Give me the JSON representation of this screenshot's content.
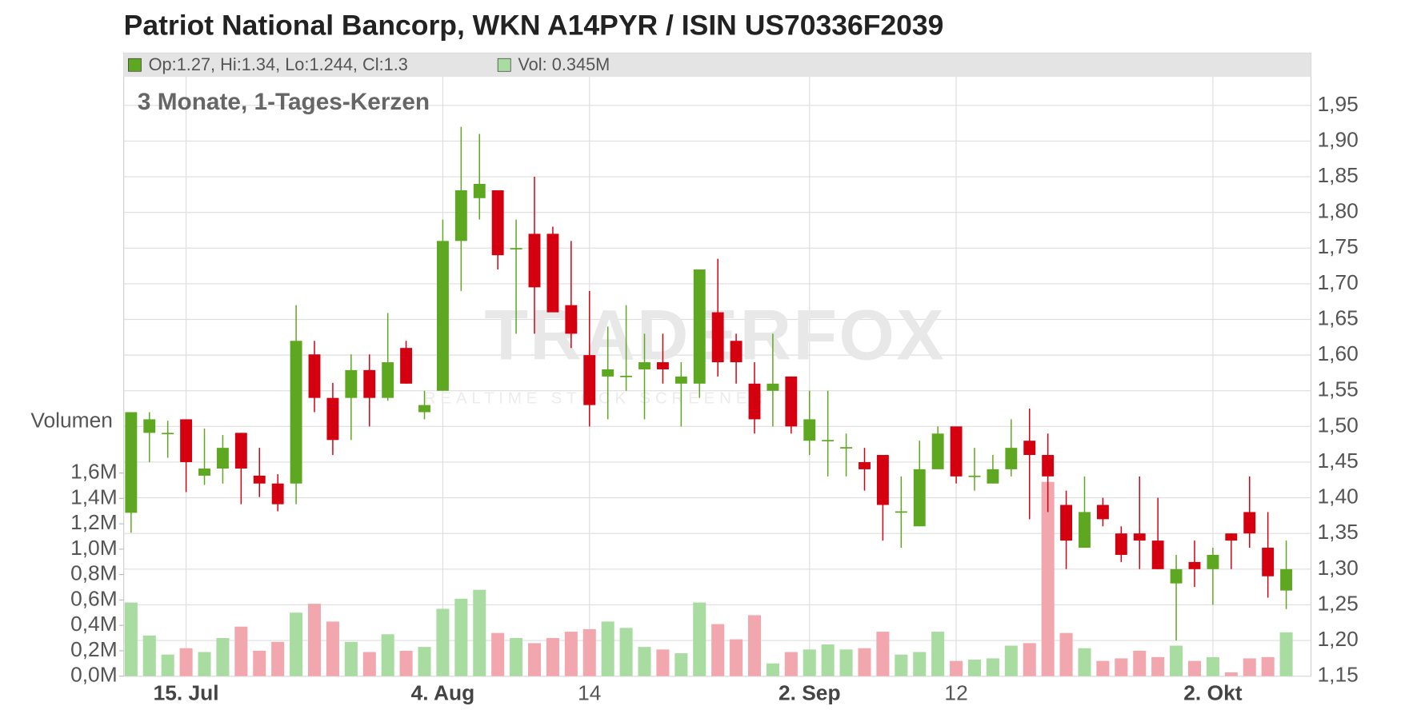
{
  "chart_data": {
    "type": "candlestick",
    "title": "Patriot National Bancorp, WKN A14PYR / ISIN US70336F2039",
    "subtitle": "3 Monate, 1-Tages-Kerzen",
    "legend": [
      "Op:1.27, Hi:1.34, Lo:1.244, Cl:1.3",
      "Vol: 0.345M"
    ],
    "watermark": "TRADERFOX",
    "watermark_subtitle": "REALTIME STOCK SCREENER",
    "y2_label": "Volumen",
    "up_color": "#5ea821",
    "down_color": "#d40010",
    "volume_up_color": "#a8dca0",
    "volume_down_color": "#f2a6ae",
    "grid": true,
    "categories": [
      null,
      null,
      null,
      "15. Jul",
      null,
      null,
      null,
      null,
      null,
      null,
      null,
      null,
      null,
      null,
      null,
      null,
      null,
      "4. Aug",
      null,
      null,
      null,
      null,
      null,
      null,
      null,
      "14",
      null,
      null,
      null,
      null,
      null,
      null,
      null,
      null,
      null,
      null,
      null,
      "2. Sep",
      null,
      null,
      null,
      null,
      null,
      null,
      null,
      "12",
      null,
      null,
      null,
      null,
      null,
      null,
      null,
      null,
      null,
      null,
      null,
      null,
      null,
      "2. Okt",
      null,
      null,
      null,
      null
    ],
    "open": [
      1.379,
      1.491,
      1.49,
      1.51,
      1.431,
      1.441,
      1.491,
      1.431,
      1.42,
      1.42,
      1.601,
      1.54,
      1.54,
      1.579,
      1.54,
      1.61,
      1.52,
      1.55,
      1.76,
      1.82,
      1.831,
      1.749,
      1.77,
      1.77,
      1.67,
      1.6,
      1.57,
      1.57,
      1.58,
      1.59,
      1.56,
      1.56,
      1.66,
      1.62,
      1.56,
      1.55,
      1.57,
      1.48,
      1.48,
      1.47,
      1.45,
      1.46,
      1.38,
      1.36,
      1.44,
      1.5,
      1.43,
      1.42,
      1.44,
      1.48,
      1.46,
      1.39,
      1.33,
      1.39,
      1.35,
      1.35,
      1.34,
      1.28,
      1.31,
      1.3,
      1.35,
      1.38,
      1.33,
      1.27
    ],
    "high": [
      1.52,
      1.52,
      1.508,
      1.51,
      1.497,
      1.488,
      1.491,
      1.47,
      1.433,
      1.67,
      1.62,
      1.561,
      1.601,
      1.601,
      1.659,
      1.62,
      1.55,
      1.79,
      1.92,
      1.91,
      1.831,
      1.79,
      1.85,
      1.78,
      1.76,
      1.69,
      1.64,
      1.67,
      1.63,
      1.63,
      1.59,
      1.72,
      1.735,
      1.63,
      1.59,
      1.63,
      1.57,
      1.55,
      1.55,
      1.49,
      1.47,
      1.46,
      1.43,
      1.48,
      1.5,
      1.5,
      1.47,
      1.46,
      1.51,
      1.525,
      1.49,
      1.41,
      1.43,
      1.4,
      1.36,
      1.43,
      1.4,
      1.32,
      1.34,
      1.33,
      1.35,
      1.43,
      1.38,
      1.34
    ],
    "low": [
      1.351,
      1.45,
      1.456,
      1.408,
      1.418,
      1.42,
      1.391,
      1.401,
      1.381,
      1.391,
      1.52,
      1.46,
      1.481,
      1.5,
      1.536,
      1.56,
      1.51,
      1.55,
      1.69,
      1.79,
      1.72,
      1.63,
      1.63,
      1.66,
      1.61,
      1.5,
      1.51,
      1.55,
      1.51,
      1.56,
      1.5,
      1.54,
      1.57,
      1.56,
      1.49,
      1.5,
      1.49,
      1.46,
      1.43,
      1.43,
      1.41,
      1.34,
      1.33,
      1.36,
      1.44,
      1.42,
      1.41,
      1.42,
      1.43,
      1.37,
      1.38,
      1.3,
      1.33,
      1.36,
      1.31,
      1.3,
      1.3,
      1.2,
      1.275,
      1.25,
      1.3,
      1.33,
      1.26,
      1.244
    ],
    "close": [
      1.52,
      1.51,
      1.491,
      1.45,
      1.441,
      1.47,
      1.441,
      1.42,
      1.391,
      1.62,
      1.54,
      1.481,
      1.579,
      1.54,
      1.59,
      1.56,
      1.53,
      1.76,
      1.831,
      1.84,
      1.74,
      1.75,
      1.695,
      1.66,
      1.63,
      1.53,
      1.58,
      1.571,
      1.59,
      1.58,
      1.57,
      1.72,
      1.59,
      1.59,
      1.51,
      1.56,
      1.5,
      1.51,
      1.481,
      1.471,
      1.44,
      1.39,
      1.381,
      1.44,
      1.49,
      1.43,
      1.431,
      1.44,
      1.47,
      1.46,
      1.43,
      1.34,
      1.38,
      1.37,
      1.32,
      1.34,
      1.3,
      1.3,
      1.3,
      1.32,
      1.34,
      1.35,
      1.29,
      1.3
    ],
    "volume": [
      0.58,
      0.32,
      0.17,
      0.22,
      0.19,
      0.3,
      0.39,
      0.2,
      0.27,
      0.5,
      0.57,
      0.43,
      0.27,
      0.19,
      0.33,
      0.2,
      0.23,
      0.53,
      0.61,
      0.68,
      0.34,
      0.3,
      0.26,
      0.3,
      0.35,
      0.37,
      0.43,
      0.38,
      0.23,
      0.21,
      0.18,
      0.58,
      0.41,
      0.29,
      0.48,
      0.1,
      0.19,
      0.21,
      0.25,
      0.21,
      0.22,
      0.35,
      0.17,
      0.19,
      0.35,
      0.12,
      0.13,
      0.14,
      0.24,
      0.26,
      1.53,
      0.34,
      0.22,
      0.12,
      0.14,
      0.2,
      0.15,
      0.24,
      0.12,
      0.15,
      0.03,
      0.14,
      0.15,
      0.345
    ],
    "ylim": [
      1.15,
      1.99
    ],
    "yticks": [
      {
        "value": 1.15,
        "label": "1,15"
      },
      {
        "value": 1.2,
        "label": "1,20"
      },
      {
        "value": 1.25,
        "label": "1,25"
      },
      {
        "value": 1.3,
        "label": "1,30"
      },
      {
        "value": 1.35,
        "label": "1,35"
      },
      {
        "value": 1.4,
        "label": "1,40"
      },
      {
        "value": 1.45,
        "label": "1,45"
      },
      {
        "value": 1.5,
        "label": "1,50"
      },
      {
        "value": 1.55,
        "label": "1,55"
      },
      {
        "value": 1.6,
        "label": "1,60"
      },
      {
        "value": 1.65,
        "label": "1,65"
      },
      {
        "value": 1.7,
        "label": "1,70"
      },
      {
        "value": 1.75,
        "label": "1,75"
      },
      {
        "value": 1.8,
        "label": "1,80"
      },
      {
        "value": 1.85,
        "label": "1,85"
      },
      {
        "value": 1.9,
        "label": "1,90"
      },
      {
        "value": 1.95,
        "label": "1,95"
      }
    ],
    "y2lim": [
      0,
      4.72
    ],
    "y2ticks": [
      {
        "value": 0,
        "label": "0,0M"
      },
      {
        "value": 0.2,
        "label": "0,2M"
      },
      {
        "value": 0.4,
        "label": "0,4M"
      },
      {
        "value": 0.6,
        "label": "0,6M"
      },
      {
        "value": 0.8,
        "label": "0,8M"
      },
      {
        "value": 1.0,
        "label": "1,0M"
      },
      {
        "value": 1.2,
        "label": "1,2M"
      },
      {
        "value": 1.4,
        "label": "1,4M"
      },
      {
        "value": 1.6,
        "label": "1,6M"
      }
    ]
  }
}
